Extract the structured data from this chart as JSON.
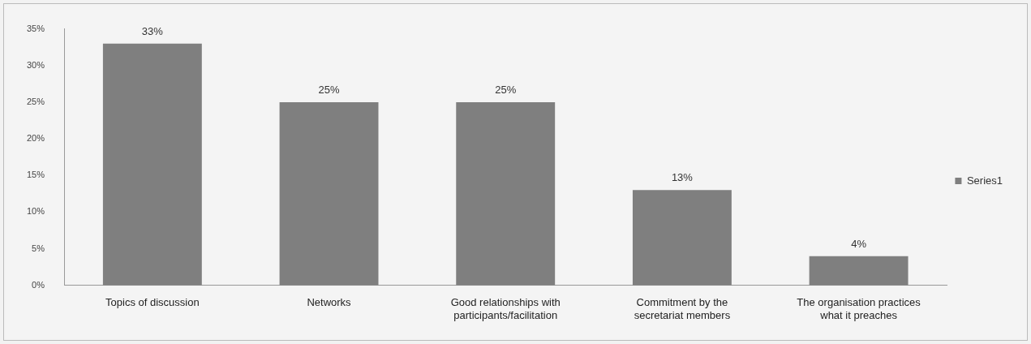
{
  "chart_data": {
    "type": "bar",
    "categories": [
      "Topics of discussion",
      "Networks",
      "Good relationships with participants/facilitation",
      "Commitment by the secretariat members",
      "The organisation practices what it preaches"
    ],
    "series": [
      {
        "name": "Series1",
        "color": "#7f7f7f",
        "values": [
          33,
          25,
          25,
          13,
          4
        ],
        "value_labels": [
          "33%",
          "25%",
          "25%",
          "13%",
          "4%"
        ]
      }
    ],
    "ylim": [
      0,
      35
    ],
    "yticks": [
      {
        "value": 0,
        "label": "0%"
      },
      {
        "value": 5,
        "label": "5%"
      },
      {
        "value": 10,
        "label": "10%"
      },
      {
        "value": 15,
        "label": "15%"
      },
      {
        "value": 20,
        "label": "20%"
      },
      {
        "value": 25,
        "label": "25%"
      },
      {
        "value": 30,
        "label": "30%"
      },
      {
        "value": 35,
        "label": "35%"
      }
    ],
    "grid": false,
    "legend": "right"
  }
}
